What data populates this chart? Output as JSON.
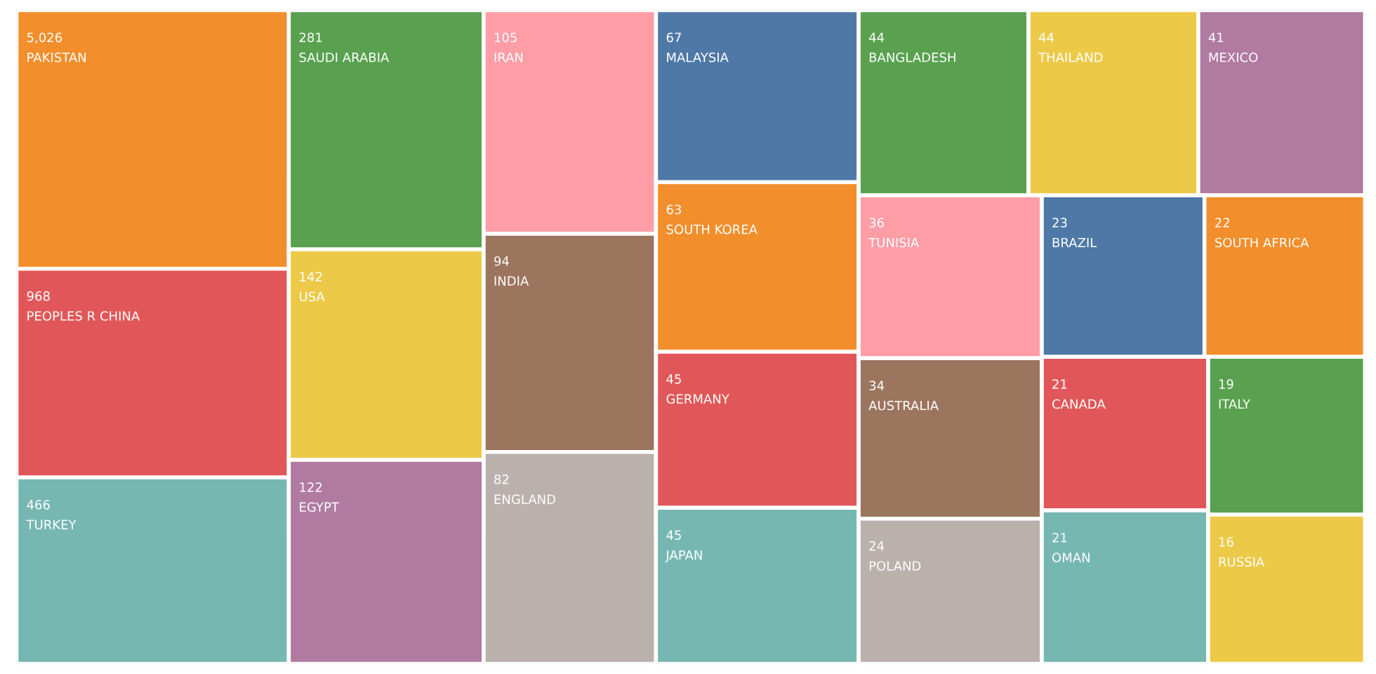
{
  "chart_data": {
    "type": "other",
    "categories": [
      "PAKISTAN",
      "PEOPLES R CHINA",
      "TURKEY",
      "SAUDI ARABIA",
      "USA",
      "EGYPT",
      "IRAN",
      "INDIA",
      "ENGLAND",
      "MALAYSIA",
      "SOUTH KOREA",
      "GERMANY",
      "JAPAN",
      "BANGLADESH",
      "THAILAND",
      "MEXICO",
      "TUNISIA",
      "AUSTRALIA",
      "POLAND",
      "BRAZIL",
      "SOUTH AFRICA",
      "CANADA",
      "OMAN",
      "ITALY",
      "RUSSIA"
    ],
    "values": [
      5026,
      968,
      466,
      281,
      142,
      122,
      105,
      94,
      82,
      67,
      63,
      45,
      45,
      44,
      44,
      41,
      36,
      34,
      24,
      23,
      22,
      21,
      21,
      19,
      16
    ],
    "colors": [
      "#f28e2b",
      "#e15759",
      "#76b7b2",
      "#59a14f",
      "#edc948",
      "#b07aa1",
      "#ff9da7",
      "#9c755f",
      "#bab0ac",
      "#4e79a7",
      "#f28e2b",
      "#e15759",
      "#76b7b2",
      "#59a14f",
      "#edc948",
      "#b07aa1",
      "#ff9da7",
      "#9c755f",
      "#bab0ac",
      "#4e79a7",
      "#f28e2b",
      "#e15759",
      "#76b7b2",
      "#59a14f",
      "#edc948"
    ],
    "value_labels": [
      "5,026",
      "968",
      "466",
      "281",
      "142",
      "122",
      "105",
      "94",
      "82",
      "67",
      "63",
      "45",
      "45",
      "44",
      "44",
      "41",
      "36",
      "34",
      "24",
      "23",
      "22",
      "21",
      "21",
      "19",
      "16"
    ]
  }
}
